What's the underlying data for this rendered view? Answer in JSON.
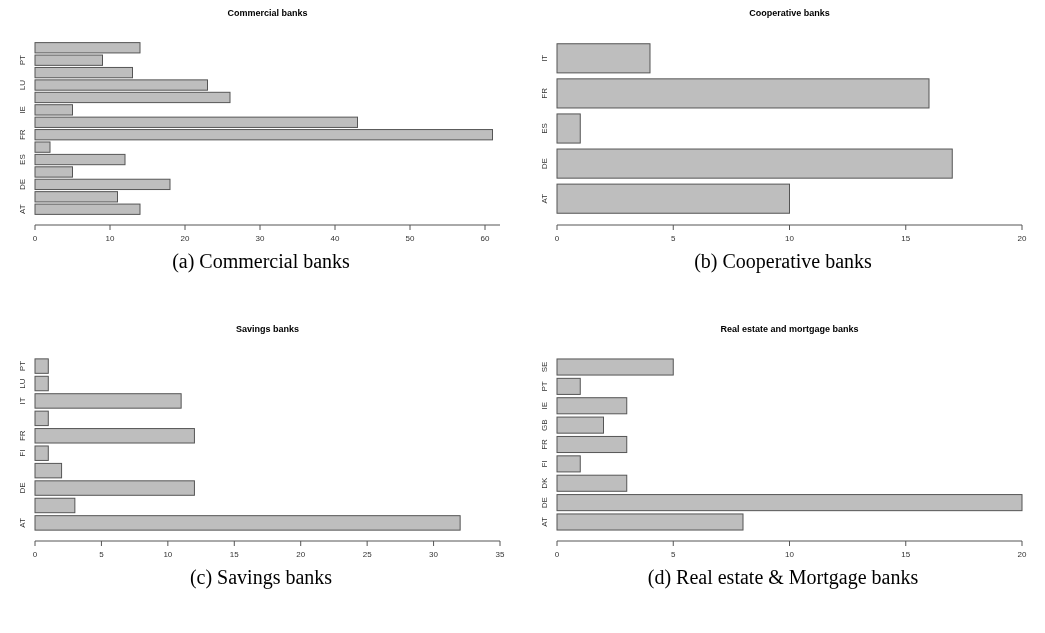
{
  "chart_data": [
    {
      "type": "bar",
      "orientation": "horizontal",
      "title": "Commercial banks",
      "categories": [
        null,
        "PT",
        null,
        "LU",
        null,
        "IE",
        null,
        "FR",
        null,
        "ES",
        null,
        "DE",
        null,
        "AT"
      ],
      "values": [
        14,
        9,
        13,
        23,
        26,
        5,
        43,
        61,
        2,
        12,
        5,
        18,
        11,
        14
      ],
      "color": "#bebebe",
      "xlim": [
        0,
        62
      ],
      "xticks": [
        0,
        10,
        20,
        30,
        40,
        50,
        60
      ],
      "grid": false,
      "annotations": [
        "(a) Commercial banks"
      ]
    },
    {
      "type": "bar",
      "orientation": "horizontal",
      "title": "Cooperative banks",
      "categories": [
        "IT",
        "FR",
        "ES",
        "DE",
        "AT"
      ],
      "values": [
        4,
        16,
        1,
        17,
        10
      ],
      "color": "#bebebe",
      "xlim": [
        0,
        20
      ],
      "xticks": [
        0,
        5,
        10,
        15,
        20
      ],
      "grid": false,
      "annotations": [
        "(b) Cooperative banks"
      ]
    },
    {
      "type": "bar",
      "orientation": "horizontal",
      "title": "Savings banks",
      "categories": [
        "PT",
        "LU",
        "IT",
        null,
        "FR",
        "FI",
        null,
        "DE",
        null,
        "AT"
      ],
      "values": [
        1,
        1,
        11,
        1,
        12,
        1,
        2,
        12,
        3,
        32
      ],
      "color": "#bebebe",
      "xlim": [
        0,
        35
      ],
      "xticks": [
        0,
        5,
        10,
        15,
        20,
        25,
        30,
        35
      ],
      "grid": false,
      "annotations": [
        "(c) Savings banks"
      ]
    },
    {
      "type": "bar",
      "orientation": "horizontal",
      "title": "Real estate and mortgage banks",
      "categories": [
        "SE",
        "PT",
        "IE",
        "GB",
        "FR",
        "FI",
        "DK",
        "DE",
        "AT"
      ],
      "values": [
        5,
        1,
        3,
        2,
        3,
        1,
        3,
        20,
        8
      ],
      "color": "#bebebe",
      "xlim": [
        0,
        20
      ],
      "xticks": [
        0,
        5,
        10,
        15,
        20
      ],
      "grid": false,
      "annotations": [
        "(d) Real estate & Mortgage banks"
      ]
    }
  ]
}
